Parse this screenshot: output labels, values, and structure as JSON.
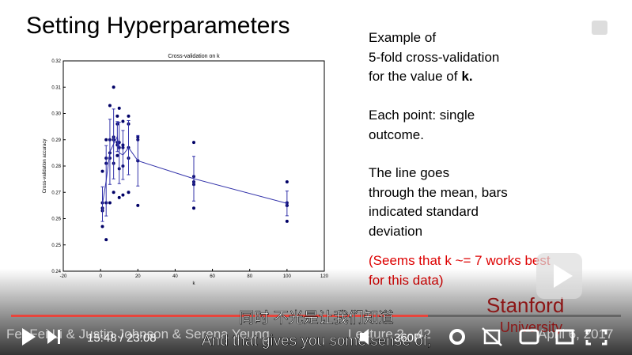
{
  "slide": {
    "title": "Setting Hyperparameters",
    "notes": [
      [
        "Example of",
        "5-fold cross-validation",
        "for the value of"
      ],
      [
        "Each point: single",
        "outcome."
      ],
      [
        "The line goes",
        "through the mean, bars",
        "indicated standard",
        "deviation"
      ]
    ],
    "bold_k": "k.",
    "red_note": [
      "(Seems that k ~= 7 works best",
      "for this data)"
    ],
    "footer": {
      "authors": "Fei-Fei Li & Justin Johnson & Serena Yeung",
      "lecture": "Lecture 2 - 42",
      "date": "April 6, 2017",
      "school": "Stanford",
      "school2": "University"
    }
  },
  "chart_data": {
    "type": "scatter",
    "title": "Cross-validation on k",
    "x_label": "k",
    "y_label": "Cross-validation accuracy",
    "xlim": [
      -20,
      120
    ],
    "xticks": [
      -20,
      0,
      20,
      40,
      60,
      80,
      100,
      120
    ],
    "ylim": [
      0.24,
      0.32
    ],
    "yticks": [
      0.24,
      0.25,
      0.26,
      0.27,
      0.28,
      0.29,
      {
        "value": 0.3,
        "label": "0.30"
      },
      0.31,
      0.32
    ],
    "series": [
      {
        "color": "#000066",
        "x": [
          1,
          1,
          1,
          1,
          1,
          3,
          3,
          3,
          3,
          3,
          5,
          5,
          5,
          5,
          5,
          7,
          7,
          7,
          7,
          7,
          9,
          9,
          9,
          9,
          9,
          10,
          10,
          10,
          10,
          10,
          12,
          12,
          12,
          12,
          12,
          15,
          15,
          15,
          15,
          15,
          20,
          20,
          20,
          20,
          20,
          50,
          50,
          50,
          50,
          50,
          100,
          100,
          100,
          100,
          100
        ],
        "values": [
          0.257,
          0.263,
          0.264,
          0.266,
          0.278,
          0.252,
          0.266,
          0.281,
          0.283,
          0.29,
          0.266,
          0.283,
          0.285,
          0.29,
          0.303,
          0.27,
          0.281,
          0.29,
          0.291,
          0.31,
          0.284,
          0.288,
          0.289,
          0.296,
          0.299,
          0.268,
          0.279,
          0.287,
          0.289,
          0.302,
          0.269,
          0.28,
          0.287,
          0.288,
          0.297,
          0.27,
          0.283,
          0.287,
          0.296,
          0.299,
          0.265,
          0.282,
          0.282,
          0.29,
          0.291,
          0.264,
          0.273,
          0.274,
          0.276,
          0.289,
          0.259,
          0.265,
          0.265,
          0.266,
          0.274
        ]
      },
      {
        "color": "#3333aa",
        "x": [
          1,
          3,
          5,
          7,
          9,
          10,
          12,
          15,
          20,
          50,
          100
        ],
        "values": [
          0.2655,
          0.2744,
          0.2854,
          0.2884,
          0.2912,
          0.285,
          0.2842,
          0.287,
          0.282,
          0.2752,
          0.2658
        ],
        "errors": [
          0.0066,
          0.0134,
          0.0124,
          0.0133,
          0.0057,
          0.0117,
          0.0093,
          0.0103,
          0.0096,
          0.0085,
          0.0047
        ]
      }
    ]
  },
  "player": {
    "subtitle_zh": "同时 不光是让我们知道",
    "subtitle_en": "And that gives you some sense of,",
    "time": "15:48 / 23:08",
    "quality": "360P"
  }
}
